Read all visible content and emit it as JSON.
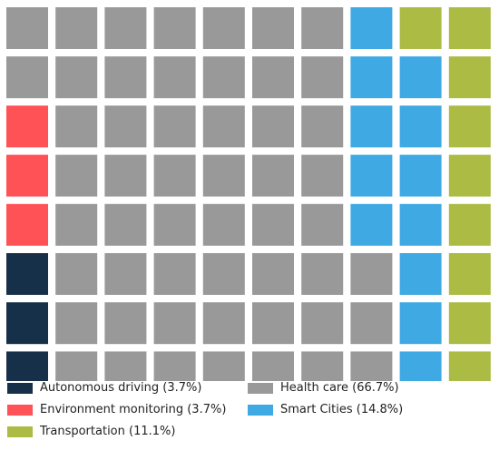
{
  "chart_data": {
    "type": "waffle",
    "rows": 8,
    "cols": 10,
    "categories": [
      {
        "name": "Autonomous driving",
        "label": "Autonomous driving (3.7%)",
        "cells": 3,
        "color": "#17304a"
      },
      {
        "name": "Environment monitoring",
        "label": "Environment monitoring  (3.7%)",
        "cells": 3,
        "color": "#ff5257"
      },
      {
        "name": "Health care",
        "label": "Health care  (66.7%)",
        "cells": 53,
        "color": "#999999"
      },
      {
        "name": "Smart Cities",
        "label": "Smart Cities  (14.8%)",
        "cells": 12,
        "color": "#3fa9e3"
      },
      {
        "name": "Transportation",
        "label": "Transportation  (11.1%)",
        "cells": 9,
        "color": "#abbb44"
      }
    ],
    "fill_order": "column-major from bottom-left",
    "legend_position": "bottom"
  }
}
